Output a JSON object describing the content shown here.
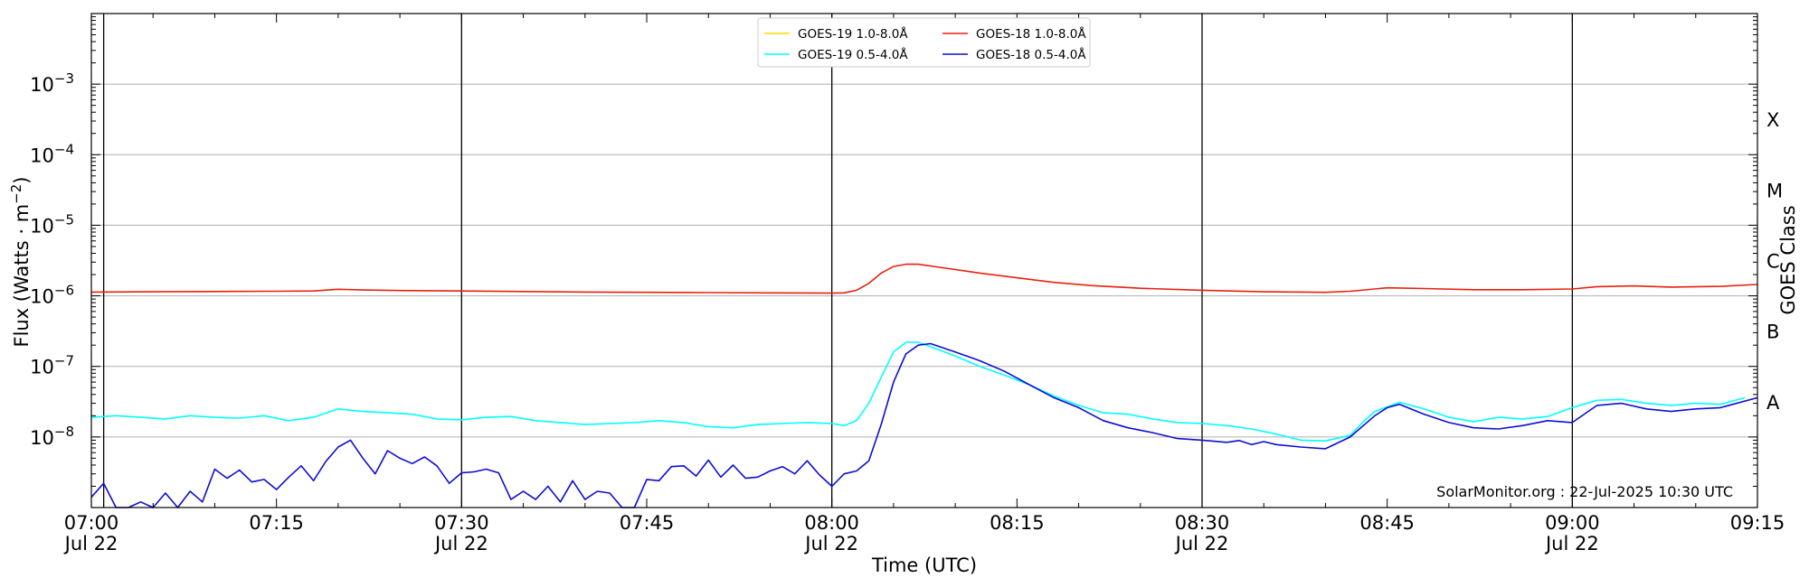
{
  "chart_data": {
    "type": "line",
    "xlabel": "Time (UTC)",
    "ylabel": "Flux (Watts · m",
    "ylabel_exponent": "−2",
    "ylabel_close": ")",
    "right_axis_label": "GOES Class",
    "credit": "SolarMonitor.org : 22-Jul-2025 10:30 UTC",
    "y_scale": "log",
    "ylim": [
      1e-09,
      0.01
    ],
    "xlim": [
      "07:00",
      "09:15"
    ],
    "grid": "horizontal at decades",
    "legend_position": "top-center",
    "x_ticks": [
      {
        "time": "07:00",
        "label": "07:00",
        "date": "Jul 22"
      },
      {
        "time": "07:15",
        "label": "07:15",
        "date": ""
      },
      {
        "time": "07:30",
        "label": "07:30",
        "date": "Jul 22"
      },
      {
        "time": "07:45",
        "label": "07:45",
        "date": ""
      },
      {
        "time": "08:00",
        "label": "08:00",
        "date": "Jul 22"
      },
      {
        "time": "08:15",
        "label": "08:15",
        "date": ""
      },
      {
        "time": "08:30",
        "label": "08:30",
        "date": "Jul 22"
      },
      {
        "time": "08:45",
        "label": "08:45",
        "date": ""
      },
      {
        "time": "09:00",
        "label": "09:00",
        "date": "Jul 22"
      },
      {
        "time": "09:15",
        "label": "09:15",
        "date": ""
      }
    ],
    "vertical_lines": [
      "07:01",
      "07:30",
      "08:00",
      "08:30",
      "09:00"
    ],
    "y_ticks": [
      {
        "value": 1e-08,
        "base": "10",
        "exp": "−8"
      },
      {
        "value": 1e-07,
        "base": "10",
        "exp": "−7"
      },
      {
        "value": 1e-06,
        "base": "10",
        "exp": "−6"
      },
      {
        "value": 1e-05,
        "base": "10",
        "exp": "−5"
      },
      {
        "value": 0.0001,
        "base": "10",
        "exp": "−4"
      },
      {
        "value": 0.001,
        "base": "10",
        "exp": "−3"
      }
    ],
    "goes_classes": [
      {
        "label": "A",
        "value": 3.16e-08
      },
      {
        "label": "B",
        "value": 3.16e-07
      },
      {
        "label": "C",
        "value": 3.16e-06
      },
      {
        "label": "M",
        "value": 3.16e-05
      },
      {
        "label": "X",
        "value": 0.000316
      }
    ],
    "series": [
      {
        "name": "GOES-19 1.0-8.0Å",
        "color": "#ffd700",
        "legend_slot": 0,
        "points": []
      },
      {
        "name": "GOES-19 0.5-4.0Å",
        "color": "#00ffff",
        "legend_slot": 1,
        "points": [
          [
            "07:00",
            1.9e-08
          ],
          [
            "07:02",
            2e-08
          ],
          [
            "07:04",
            1.9e-08
          ],
          [
            "07:06",
            1.8e-08
          ],
          [
            "07:08",
            2e-08
          ],
          [
            "07:10",
            1.9e-08
          ],
          [
            "07:12",
            1.85e-08
          ],
          [
            "07:14",
            2e-08
          ],
          [
            "07:16",
            1.7e-08
          ],
          [
            "07:18",
            1.9e-08
          ],
          [
            "07:20",
            2.5e-08
          ],
          [
            "07:22",
            2.3e-08
          ],
          [
            "07:24",
            2.2e-08
          ],
          [
            "07:26",
            2.1e-08
          ],
          [
            "07:28",
            1.8e-08
          ],
          [
            "07:30",
            1.75e-08
          ],
          [
            "07:32",
            1.9e-08
          ],
          [
            "07:34",
            1.95e-08
          ],
          [
            "07:36",
            1.7e-08
          ],
          [
            "07:38",
            1.6e-08
          ],
          [
            "07:40",
            1.5e-08
          ],
          [
            "07:42",
            1.55e-08
          ],
          [
            "07:44",
            1.6e-08
          ],
          [
            "07:46",
            1.7e-08
          ],
          [
            "07:48",
            1.6e-08
          ],
          [
            "07:50",
            1.4e-08
          ],
          [
            "07:52",
            1.35e-08
          ],
          [
            "07:54",
            1.5e-08
          ],
          [
            "07:56",
            1.55e-08
          ],
          [
            "07:58",
            1.6e-08
          ],
          [
            "08:00",
            1.55e-08
          ],
          [
            "08:01",
            1.45e-08
          ],
          [
            "08:02",
            1.7e-08
          ],
          [
            "08:03",
            3e-08
          ],
          [
            "08:04",
            7e-08
          ],
          [
            "08:05",
            1.6e-07
          ],
          [
            "08:06",
            2.2e-07
          ],
          [
            "08:07",
            2.2e-07
          ],
          [
            "08:08",
            1.9e-07
          ],
          [
            "08:10",
            1.4e-07
          ],
          [
            "08:12",
            1e-07
          ],
          [
            "08:14",
            7.5e-08
          ],
          [
            "08:16",
            5.5e-08
          ],
          [
            "08:18",
            3.8e-08
          ],
          [
            "08:20",
            2.8e-08
          ],
          [
            "08:22",
            2.2e-08
          ],
          [
            "08:24",
            2.1e-08
          ],
          [
            "08:26",
            1.8e-08
          ],
          [
            "08:28",
            1.6e-08
          ],
          [
            "08:30",
            1.55e-08
          ],
          [
            "08:32",
            1.45e-08
          ],
          [
            "08:34",
            1.3e-08
          ],
          [
            "08:36",
            1.1e-08
          ],
          [
            "08:38",
            9e-09
          ],
          [
            "08:40",
            8.8e-09
          ],
          [
            "08:42",
            1.05e-08
          ],
          [
            "08:43",
            1.6e-08
          ],
          [
            "08:44",
            2.3e-08
          ],
          [
            "08:46",
            3.1e-08
          ],
          [
            "08:48",
            2.5e-08
          ],
          [
            "08:50",
            1.9e-08
          ],
          [
            "08:52",
            1.65e-08
          ],
          [
            "08:54",
            1.9e-08
          ],
          [
            "08:56",
            1.8e-08
          ],
          [
            "08:58",
            1.95e-08
          ],
          [
            "09:00",
            2.6e-08
          ],
          [
            "09:02",
            3.3e-08
          ],
          [
            "09:04",
            3.4e-08
          ],
          [
            "09:06",
            3e-08
          ],
          [
            "09:08",
            2.8e-08
          ],
          [
            "09:10",
            3e-08
          ],
          [
            "09:12",
            2.9e-08
          ],
          [
            "09:14",
            3.6e-08
          ]
        ]
      },
      {
        "name": "GOES-18 1.0-8.0Å",
        "color": "#e8200f",
        "legend_slot": 2,
        "points": [
          [
            "07:00",
            1.13e-06
          ],
          [
            "07:05",
            1.14e-06
          ],
          [
            "07:10",
            1.15e-06
          ],
          [
            "07:15",
            1.16e-06
          ],
          [
            "07:18",
            1.17e-06
          ],
          [
            "07:20",
            1.24e-06
          ],
          [
            "07:22",
            1.21e-06
          ],
          [
            "07:25",
            1.19e-06
          ],
          [
            "07:30",
            1.17e-06
          ],
          [
            "07:35",
            1.15e-06
          ],
          [
            "07:40",
            1.13e-06
          ],
          [
            "07:45",
            1.12e-06
          ],
          [
            "07:50",
            1.11e-06
          ],
          [
            "07:55",
            1.1e-06
          ],
          [
            "08:00",
            1.09e-06
          ],
          [
            "08:01",
            1.1e-06
          ],
          [
            "08:02",
            1.2e-06
          ],
          [
            "08:03",
            1.5e-06
          ],
          [
            "08:04",
            2.1e-06
          ],
          [
            "08:05",
            2.6e-06
          ],
          [
            "08:06",
            2.8e-06
          ],
          [
            "08:07",
            2.8e-06
          ],
          [
            "08:09",
            2.5e-06
          ],
          [
            "08:12",
            2.1e-06
          ],
          [
            "08:15",
            1.8e-06
          ],
          [
            "08:18",
            1.55e-06
          ],
          [
            "08:21",
            1.4e-06
          ],
          [
            "08:25",
            1.28e-06
          ],
          [
            "08:30",
            1.2e-06
          ],
          [
            "08:35",
            1.14e-06
          ],
          [
            "08:40",
            1.12e-06
          ],
          [
            "08:42",
            1.16e-06
          ],
          [
            "08:45",
            1.3e-06
          ],
          [
            "08:48",
            1.27e-06
          ],
          [
            "08:52",
            1.22e-06
          ],
          [
            "08:56",
            1.22e-06
          ],
          [
            "09:00",
            1.25e-06
          ],
          [
            "09:02",
            1.35e-06
          ],
          [
            "09:05",
            1.38e-06
          ],
          [
            "09:08",
            1.33e-06
          ],
          [
            "09:12",
            1.36e-06
          ],
          [
            "09:15",
            1.45e-06
          ]
        ]
      },
      {
        "name": "GOES-18 0.5-4.0Å",
        "color": "#0d0dd4",
        "legend_slot": 3,
        "points": [
          [
            "07:00",
            1.4e-09
          ],
          [
            "07:01",
            2.2e-09
          ],
          [
            "07:02",
            1e-09
          ],
          [
            "07:03",
            9e-10
          ],
          [
            "07:04",
            1.2e-09
          ],
          [
            "07:05",
            1e-09
          ],
          [
            "07:06",
            1.6e-09
          ],
          [
            "07:07",
            1e-09
          ],
          [
            "07:08",
            1.7e-09
          ],
          [
            "07:09",
            1.2e-09
          ],
          [
            "07:10",
            3.5e-09
          ],
          [
            "07:11",
            2.6e-09
          ],
          [
            "07:12",
            3.4e-09
          ],
          [
            "07:13",
            2.3e-09
          ],
          [
            "07:14",
            2.5e-09
          ],
          [
            "07:15",
            1.8e-09
          ],
          [
            "07:16",
            2.7e-09
          ],
          [
            "07:17",
            3.9e-09
          ],
          [
            "07:18",
            2.4e-09
          ],
          [
            "07:19",
            4.5e-09
          ],
          [
            "07:20",
            7.2e-09
          ],
          [
            "07:21",
            9e-09
          ],
          [
            "07:22",
            5e-09
          ],
          [
            "07:23",
            3e-09
          ],
          [
            "07:24",
            6.4e-09
          ],
          [
            "07:25",
            5e-09
          ],
          [
            "07:26",
            4.2e-09
          ],
          [
            "07:27",
            5.2e-09
          ],
          [
            "07:28",
            3.9e-09
          ],
          [
            "07:29",
            2.2e-09
          ],
          [
            "07:30",
            3.1e-09
          ],
          [
            "07:31",
            3.2e-09
          ],
          [
            "07:32",
            3.5e-09
          ],
          [
            "07:33",
            3.1e-09
          ],
          [
            "07:34",
            1.3e-09
          ],
          [
            "07:35",
            1.7e-09
          ],
          [
            "07:36",
            1.3e-09
          ],
          [
            "07:37",
            2e-09
          ],
          [
            "07:38",
            1.2e-09
          ],
          [
            "07:39",
            2.4e-09
          ],
          [
            "07:40",
            1.3e-09
          ],
          [
            "07:41",
            1.7e-09
          ],
          [
            "07:42",
            1.6e-09
          ],
          [
            "07:43",
            9e-10
          ],
          [
            "07:44",
            1e-09
          ],
          [
            "07:45",
            2.5e-09
          ],
          [
            "07:46",
            2.4e-09
          ],
          [
            "07:47",
            3.8e-09
          ],
          [
            "07:48",
            3.9e-09
          ],
          [
            "07:49",
            2.8e-09
          ],
          [
            "07:50",
            4.7e-09
          ],
          [
            "07:51",
            2.7e-09
          ],
          [
            "07:52",
            4e-09
          ],
          [
            "07:53",
            2.6e-09
          ],
          [
            "07:54",
            2.7e-09
          ],
          [
            "07:55",
            3.3e-09
          ],
          [
            "07:56",
            3.8e-09
          ],
          [
            "07:57",
            3e-09
          ],
          [
            "07:58",
            4.6e-09
          ],
          [
            "07:59",
            2.9e-09
          ],
          [
            "08:00",
            2e-09
          ],
          [
            "08:01",
            3e-09
          ],
          [
            "08:02",
            3.3e-09
          ],
          [
            "08:03",
            4.6e-09
          ],
          [
            "08:04",
            1.5e-08
          ],
          [
            "08:05",
            6e-08
          ],
          [
            "08:06",
            1.5e-07
          ],
          [
            "08:07",
            2e-07
          ],
          [
            "08:08",
            2.1e-07
          ],
          [
            "08:10",
            1.6e-07
          ],
          [
            "08:12",
            1.2e-07
          ],
          [
            "08:14",
            8.5e-08
          ],
          [
            "08:16",
            5.5e-08
          ],
          [
            "08:18",
            3.6e-08
          ],
          [
            "08:20",
            2.6e-08
          ],
          [
            "08:22",
            1.7e-08
          ],
          [
            "08:24",
            1.35e-08
          ],
          [
            "08:26",
            1.15e-08
          ],
          [
            "08:28",
            9.5e-09
          ],
          [
            "08:30",
            9e-09
          ],
          [
            "08:32",
            8.4e-09
          ],
          [
            "08:33",
            8.9e-09
          ],
          [
            "08:34",
            7.8e-09
          ],
          [
            "08:35",
            8.6e-09
          ],
          [
            "08:36",
            7.8e-09
          ],
          [
            "08:38",
            7.2e-09
          ],
          [
            "08:40",
            6.8e-09
          ],
          [
            "08:42",
            1e-08
          ],
          [
            "08:44",
            2e-08
          ],
          [
            "08:45",
            2.6e-08
          ],
          [
            "08:46",
            2.9e-08
          ],
          [
            "08:48",
            2.1e-08
          ],
          [
            "08:50",
            1.6e-08
          ],
          [
            "08:52",
            1.35e-08
          ],
          [
            "08:54",
            1.3e-08
          ],
          [
            "08:56",
            1.45e-08
          ],
          [
            "08:58",
            1.7e-08
          ],
          [
            "09:00",
            1.6e-08
          ],
          [
            "09:02",
            2.8e-08
          ],
          [
            "09:04",
            3e-08
          ],
          [
            "09:06",
            2.5e-08
          ],
          [
            "09:08",
            2.3e-08
          ],
          [
            "09:10",
            2.5e-08
          ],
          [
            "09:12",
            2.6e-08
          ],
          [
            "09:15",
            3.6e-08
          ]
        ]
      }
    ]
  }
}
